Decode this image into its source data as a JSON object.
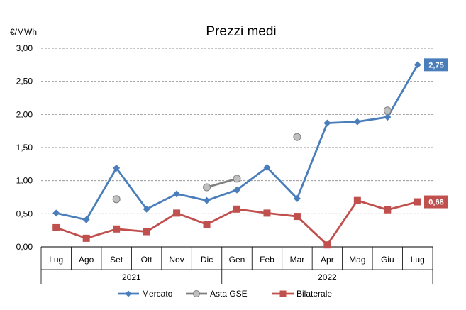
{
  "chart_data": {
    "type": "line",
    "title": "Prezzi medi",
    "ylabel": "€/MWh",
    "ylim": [
      0,
      3
    ],
    "yticks": [
      0,
      0.5,
      1,
      1.5,
      2,
      2.5,
      3
    ],
    "ytick_labels": [
      "0,00",
      "0,50",
      "1,00",
      "1,50",
      "2,00",
      "2,50",
      "3,00"
    ],
    "categories": [
      "Lug",
      "Ago",
      "Set",
      "Ott",
      "Nov",
      "Dic",
      "Gen",
      "Feb",
      "Mar",
      "Apr",
      "Mag",
      "Giu",
      "Lug"
    ],
    "year_groups": [
      {
        "label": "2021",
        "start": 0,
        "end": 5
      },
      {
        "label": "2022",
        "start": 6,
        "end": 12
      }
    ],
    "grid": true,
    "legend_position": "bottom",
    "series": [
      {
        "name": "Mercato",
        "color": "#4a7ebb",
        "marker": "diamond",
        "values": [
          0.51,
          0.41,
          1.19,
          0.57,
          0.8,
          0.7,
          0.86,
          1.2,
          0.73,
          1.87,
          1.89,
          1.96,
          2.75
        ],
        "end_label": "2,75"
      },
      {
        "name": "Asta GSE",
        "color": "#7f7f7f",
        "marker_fill": "#bfbfbf",
        "marker": "circle",
        "values": [
          null,
          null,
          0.72,
          null,
          null,
          0.9,
          1.03,
          null,
          1.66,
          null,
          null,
          2.06,
          null
        ]
      },
      {
        "name": "Bilaterale",
        "color": "#c0504d",
        "marker": "square",
        "values": [
          0.29,
          0.13,
          0.27,
          0.23,
          0.51,
          0.34,
          0.57,
          0.51,
          0.46,
          0.03,
          0.7,
          0.56,
          0.68
        ],
        "end_label": "0,68"
      }
    ]
  }
}
